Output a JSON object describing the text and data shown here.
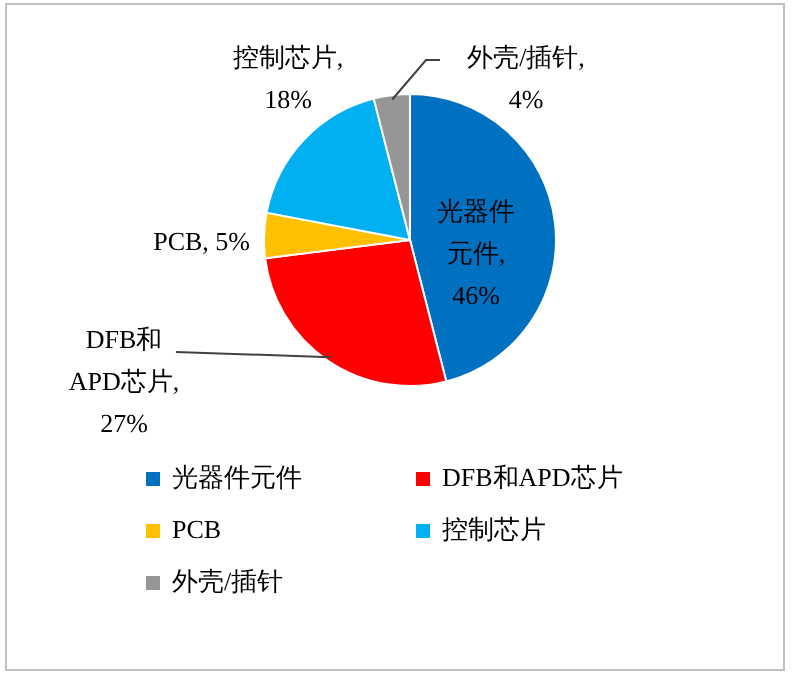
{
  "chart_data": {
    "type": "pie",
    "categories": [
      "光器件元件",
      "DFB和APD芯片",
      "PCB",
      "控制芯片",
      "外壳/插针"
    ],
    "values": [
      46,
      27,
      5,
      18,
      4
    ],
    "value_labels": [
      "光器件元件, 46%",
      "DFB和APD芯片, 27%",
      "PCB, 5%",
      "控制芯片, 18%",
      "外壳/插针, 4%"
    ],
    "colors": [
      "#0070c0",
      "#ff0000",
      "#ffc000",
      "#00b0f0",
      "#969696"
    ],
    "legend": "bottom"
  }
}
